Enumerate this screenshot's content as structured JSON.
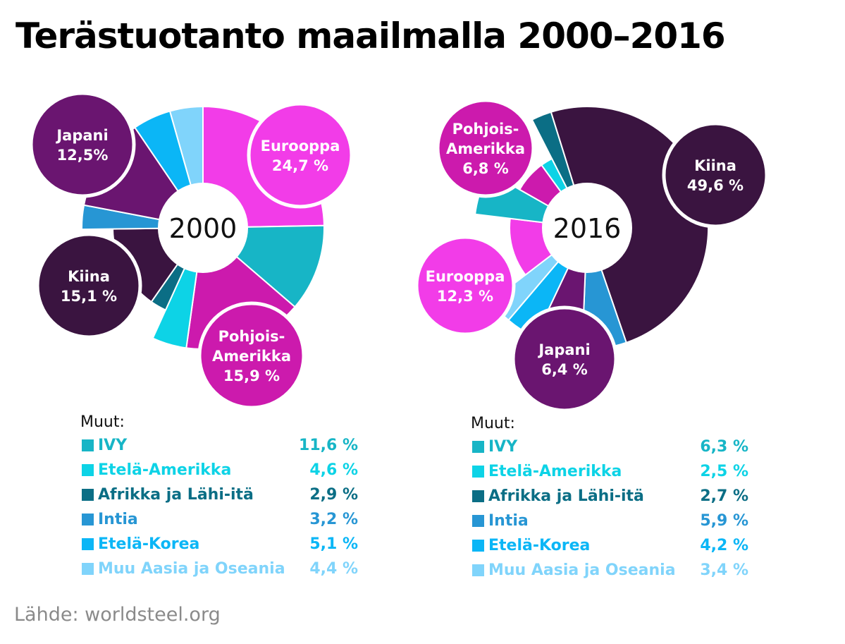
{
  "title": "Terästuotanto maailmalla 2000–2016",
  "source": "Lähde: worldsteel.org",
  "colors": {
    "Eurooppa": "#f23ce8",
    "IVY": "#17b5c6",
    "Etelä-Amerikka": "#0dd3e6",
    "Afrikka ja Lähi-itä": "#0b6e85",
    "Pohjois-Amerikka": "#cc1aad",
    "Kiina": "#3a1440",
    "Intia": "#2796d4",
    "Japani": "#6a1570",
    "Etelä-Korea": "#0bb6f6",
    "Muu Aasia ja Oseania": "#80d4fb"
  },
  "chart_data": [
    {
      "type": "pie",
      "title": "2000",
      "year_label": "2000",
      "main_slices": [
        {
          "name": "Eurooppa",
          "label_lines": [
            "Eurooppa",
            "24,7 %"
          ],
          "value": 24.7
        },
        {
          "name": "Pohjois-Amerikka",
          "label_lines": [
            "Pohjois-",
            "Amerikka",
            "15,9 %"
          ],
          "value": 15.9
        },
        {
          "name": "Kiina",
          "label_lines": [
            "Kiina",
            "15,1 %"
          ],
          "value": 15.1
        },
        {
          "name": "Japani",
          "label_lines": [
            "Japani",
            "12,5%"
          ],
          "value": 12.5
        }
      ],
      "legend_title": "Muut:",
      "others": [
        {
          "name": "IVY",
          "value": 11.6,
          "value_label": "11,6 %"
        },
        {
          "name": "Etelä-Amerikka",
          "value": 4.6,
          "value_label": "4,6 %"
        },
        {
          "name": "Afrikka ja Lähi-itä",
          "value": 2.9,
          "value_label": "2,9 %"
        },
        {
          "name": "Intia",
          "value": 3.2,
          "value_label": "3,2 %"
        },
        {
          "name": "Etelä-Korea",
          "value": 5.1,
          "value_label": "5,1 %"
        },
        {
          "name": "Muu Aasia ja Oseania",
          "value": 4.4,
          "value_label": "4,4 %"
        }
      ],
      "slice_order": [
        "Eurooppa",
        "IVY",
        "Pohjois-Amerikka",
        "Etelä-Amerikka",
        "Afrikka ja Lähi-itä",
        "Kiina",
        "Intia",
        "Japani",
        "Etelä-Korea",
        "Muu Aasia ja Oseania"
      ]
    },
    {
      "type": "pie",
      "title": "2016",
      "year_label": "2016",
      "main_slices": [
        {
          "name": "Kiina",
          "label_lines": [
            "Kiina",
            "49,6 %"
          ],
          "value": 49.6
        },
        {
          "name": "Eurooppa",
          "label_lines": [
            "Eurooppa",
            "12,3 %"
          ],
          "value": 12.3
        },
        {
          "name": "Pohjois-Amerikka",
          "label_lines": [
            "Pohjois-",
            "Amerikka",
            "6,8 %"
          ],
          "value": 6.8
        },
        {
          "name": "Japani",
          "label_lines": [
            "Japani",
            "6,4 %"
          ],
          "value": 6.4
        }
      ],
      "legend_title": "Muut:",
      "others": [
        {
          "name": "IVY",
          "value": 6.3,
          "value_label": "6,3 %"
        },
        {
          "name": "Etelä-Amerikka",
          "value": 2.5,
          "value_label": "2,5 %"
        },
        {
          "name": "Afrikka ja Lähi-itä",
          "value": 2.7,
          "value_label": "2,7 %"
        },
        {
          "name": "Intia",
          "value": 5.9,
          "value_label": "5,9 %"
        },
        {
          "name": "Etelä-Korea",
          "value": 4.2,
          "value_label": "4,2 %"
        },
        {
          "name": "Muu Aasia ja Oseania",
          "value": 3.4,
          "value_label": "3,4 %"
        }
      ],
      "slice_order": [
        "Afrikka ja Lähi-itä",
        "Kiina",
        "Intia",
        "Japani",
        "Etelä-Korea",
        "Muu Aasia ja Oseania",
        "Eurooppa",
        "IVY",
        "Pohjois-Amerikka",
        "Etelä-Amerikka"
      ]
    }
  ]
}
